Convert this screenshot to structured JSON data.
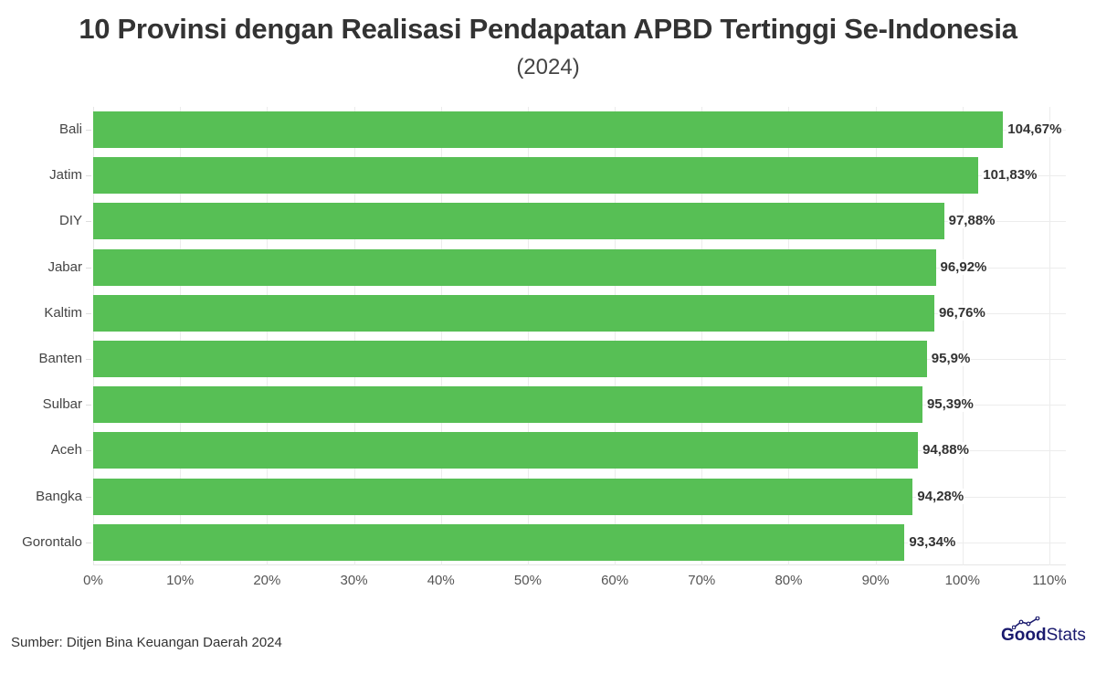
{
  "header": {
    "title": "10 Provinsi dengan Realisasi Pendapatan APBD Tertinggi Se-Indonesia",
    "subtitle": "(2024)"
  },
  "footer": {
    "source": "Sumber: Ditjen Bina Keuangan Daerah 2024",
    "logo_bold": "Good",
    "logo_light": "Stats",
    "logo_icon": "trend-line-icon"
  },
  "colors": {
    "bar": "#57bf55",
    "logo": "#1a1a6e"
  },
  "chart_data": {
    "type": "bar",
    "orientation": "horizontal",
    "title": "10 Provinsi dengan Realisasi Pendapatan APBD Tertinggi Se-Indonesia",
    "subtitle": "(2024)",
    "xlabel": "",
    "ylabel": "",
    "xlim": [
      0,
      110
    ],
    "x_ticks": [
      "0%",
      "10%",
      "20%",
      "30%",
      "40%",
      "50%",
      "60%",
      "70%",
      "80%",
      "90%",
      "100%",
      "110%"
    ],
    "grid": true,
    "legend": null,
    "categories": [
      "Bali",
      "Jatim",
      "DIY",
      "Jabar",
      "Kaltim",
      "Banten",
      "Sulbar",
      "Aceh",
      "Bangka",
      "Gorontalo"
    ],
    "values": [
      104.67,
      101.83,
      97.88,
      96.92,
      96.76,
      95.9,
      95.39,
      94.88,
      94.28,
      93.34
    ],
    "value_labels": [
      "104,67%",
      "101,83%",
      "97,88%",
      "96,92%",
      "96,76%",
      "95,9%",
      "95,39%",
      "94,88%",
      "94,28%",
      "93,34%"
    ],
    "source": "Sumber: Ditjen Bina Keuangan Daerah 2024"
  }
}
